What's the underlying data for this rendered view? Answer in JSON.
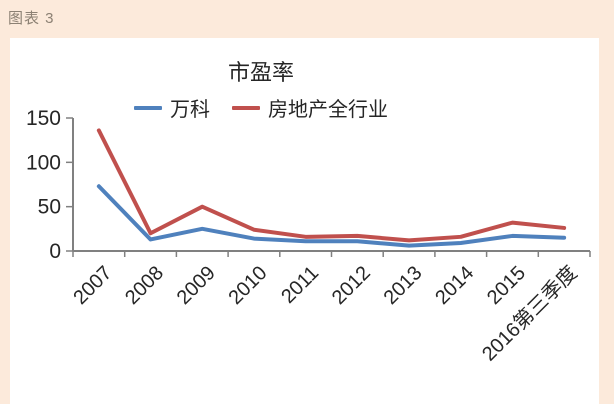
{
  "page": {
    "caption": "图表 3"
  },
  "colors": {
    "background": "#FCEADB",
    "panel": "#FFFFFF",
    "caption_text": "#8C8174",
    "axis": "#808080",
    "text": "#262626"
  },
  "chart_data": {
    "type": "line",
    "title": "市盈率",
    "categories": [
      "2007",
      "2008",
      "2009",
      "2010",
      "2011",
      "2012",
      "2013",
      "2014",
      "2015",
      "2016第三季度"
    ],
    "series": [
      {
        "name": "万科",
        "color": "#4F81BD",
        "values": [
          73,
          13,
          25,
          14,
          11,
          11,
          6,
          9,
          17,
          15
        ]
      },
      {
        "name": "房地产全行业",
        "color": "#C0504D",
        "values": [
          136,
          20,
          50,
          24,
          16,
          17,
          12,
          16,
          32,
          26
        ]
      }
    ],
    "ylabel": "",
    "xlabel": "",
    "ylim": [
      0,
      150
    ],
    "yticks": [
      0,
      50,
      100,
      150
    ],
    "grid": false,
    "legend_position": "top-center",
    "x_label_rotation_deg": -45
  }
}
